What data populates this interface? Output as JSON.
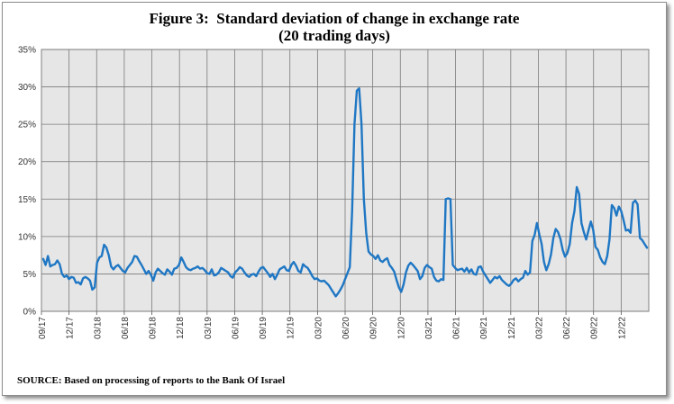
{
  "chart_data": {
    "type": "line",
    "title": "Figure 3:  Standard deviation of change in exchange rate",
    "subtitle": "(20 trading days)",
    "source": "SOURCE: Based on processing of reports to the Bank Of Israel",
    "xlabel": "",
    "ylabel": "",
    "ylim": [
      0,
      35
    ],
    "y_ticks": [
      "0%",
      "5%",
      "10%",
      "15%",
      "20%",
      "25%",
      "30%",
      "35%"
    ],
    "x_ticks": [
      "09/17",
      "12/17",
      "03/18",
      "06/18",
      "09/18",
      "12/18",
      "03/19",
      "06/19",
      "09/19",
      "12/19",
      "03/20",
      "06/20",
      "09/20",
      "12/20",
      "03/21",
      "06/21",
      "09/21",
      "12/21",
      "03/22",
      "06/22",
      "09/22",
      "12/22"
    ],
    "grid": true,
    "legend": "none",
    "line_color": "#1f77c4",
    "plot_background": "#e6e6e6",
    "series": [
      {
        "values": [
          7.0,
          6.2,
          7.4,
          6.0,
          6.2,
          6.3,
          6.8,
          6.3,
          5.0,
          4.6,
          4.8,
          4.3,
          4.6,
          4.5,
          3.8,
          3.9,
          3.6,
          4.4,
          4.6,
          4.4,
          4.1,
          2.9,
          3.2,
          6.5,
          7.2,
          7.4,
          8.9,
          8.5,
          7.5,
          6.0,
          5.6,
          6.0,
          6.2,
          5.8,
          5.4,
          5.2,
          5.8,
          6.2,
          6.6,
          7.4,
          7.3,
          6.7,
          6.2,
          5.6,
          5.0,
          5.4,
          4.9,
          4.1,
          5.2,
          5.7,
          5.4,
          5.1,
          4.9,
          5.6,
          5.3,
          4.9,
          5.7,
          5.8,
          6.2,
          7.2,
          6.6,
          5.9,
          5.6,
          5.5,
          5.7,
          5.8,
          6.0,
          5.7,
          5.8,
          5.5,
          5.1,
          5.0,
          5.6,
          4.8,
          4.9,
          5.2,
          5.8,
          5.6,
          5.4,
          5.2,
          4.7,
          4.5,
          5.2,
          5.5,
          5.9,
          5.7,
          5.2,
          4.8,
          4.6,
          4.9,
          5.0,
          4.7,
          5.3,
          5.8,
          5.9,
          5.5,
          5.1,
          4.6,
          5.0,
          4.3,
          4.9,
          5.6,
          5.8,
          6.0,
          5.5,
          5.4,
          6.2,
          6.6,
          6.1,
          5.4,
          5.2,
          6.3,
          6.0,
          5.8,
          5.3,
          4.7,
          4.3,
          4.4,
          4.1,
          4.0,
          4.1,
          3.8,
          3.5,
          3.0,
          2.5,
          2.0,
          2.4,
          2.9,
          3.5,
          4.3,
          5.1,
          5.9,
          13.5,
          25.0,
          29.5,
          29.8,
          25.0,
          15.0,
          10.5,
          8.0,
          7.6,
          7.4,
          7.0,
          7.5,
          6.8,
          6.6,
          6.9,
          7.1,
          6.2,
          5.8,
          5.3,
          4.2,
          3.2,
          2.6,
          3.6,
          5.2,
          6.1,
          6.5,
          6.2,
          5.8,
          5.4,
          4.3,
          4.7,
          5.8,
          6.2,
          5.9,
          5.7,
          4.6,
          4.1,
          4.0,
          4.3,
          4.2,
          15.0,
          15.1,
          15.0,
          6.2,
          5.8,
          5.5,
          5.6,
          5.7,
          5.3,
          5.8,
          5.2,
          5.6,
          5.0,
          4.9,
          5.9,
          6.0,
          5.3,
          4.8,
          4.3,
          3.8,
          4.2,
          4.6,
          4.4,
          4.7,
          4.2,
          3.9,
          3.6,
          3.4,
          3.7,
          4.2,
          4.4,
          4.0,
          4.3,
          4.5,
          5.4,
          4.9,
          5.2,
          9.4,
          10.2,
          11.8,
          10.3,
          9.0,
          6.6,
          5.5,
          6.3,
          7.6,
          9.8,
          11.0,
          10.6,
          9.7,
          8.2,
          7.3,
          7.8,
          9.0,
          11.8,
          13.4,
          16.6,
          15.7,
          11.8,
          10.6,
          9.6,
          10.8,
          12.0,
          10.9,
          8.6,
          8.2,
          7.2,
          6.6,
          6.3,
          7.4,
          9.6,
          14.2,
          13.8,
          12.8,
          14.0,
          13.4,
          12.2,
          10.8,
          10.9,
          10.5,
          14.5,
          14.8,
          14.3,
          9.8,
          9.5,
          9.0,
          8.5
        ]
      }
    ]
  }
}
